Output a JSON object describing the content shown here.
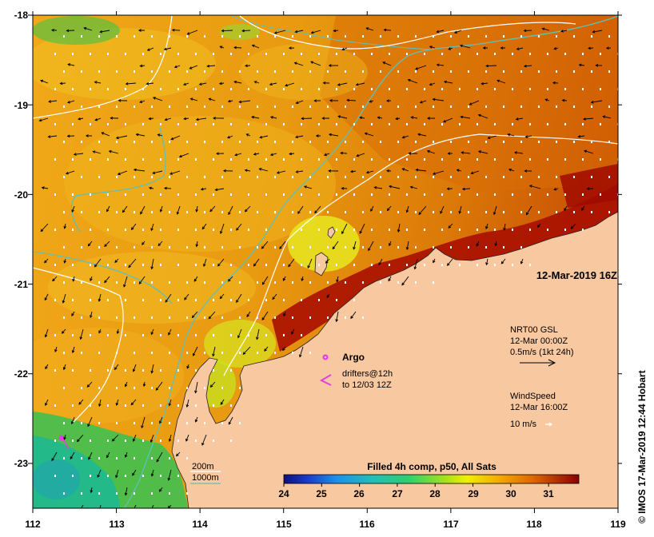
{
  "map": {
    "type": "sea-surface-temperature-map",
    "x_axis": {
      "ticks": [
        "112",
        "113",
        "114",
        "115",
        "116",
        "117",
        "118",
        "119"
      ],
      "range": [
        112,
        119
      ]
    },
    "y_axis": {
      "ticks": [
        "-18",
        "-19",
        "-20",
        "-21",
        "-22",
        "-23"
      ],
      "range": [
        -23.5,
        -18
      ]
    },
    "timestamp": "12-Mar-2019 16Z",
    "current_info": {
      "line1": "NRT00 GSL",
      "line2": "12-Mar 00:00Z",
      "line3": "0.5m/s (1kt 24h)"
    },
    "wind_info": {
      "line1": "WindSpeed",
      "line2": "12-Mar 16:00Z",
      "line3": "10 m/s"
    },
    "argo_label": "Argo",
    "drifters_label": "drifters@12h",
    "drifters_sub": "to 12/03 12Z",
    "contours": {
      "c200": "200m",
      "c1000": "1000m"
    },
    "colorbar": {
      "title": "Filled 4h comp, p50, All Sats",
      "ticks": [
        "24",
        "25",
        "26",
        "27",
        "28",
        "29",
        "30",
        "31"
      ],
      "range": [
        24,
        31.8
      ]
    },
    "credit": "© IMOS 17-Mar-2019 12:44 Hobart",
    "colors": {
      "land": "#f8c8a0",
      "isobath_200": "#ffffff",
      "isobath_1000": "#5fc0b8",
      "argo": "#e040e0"
    }
  }
}
